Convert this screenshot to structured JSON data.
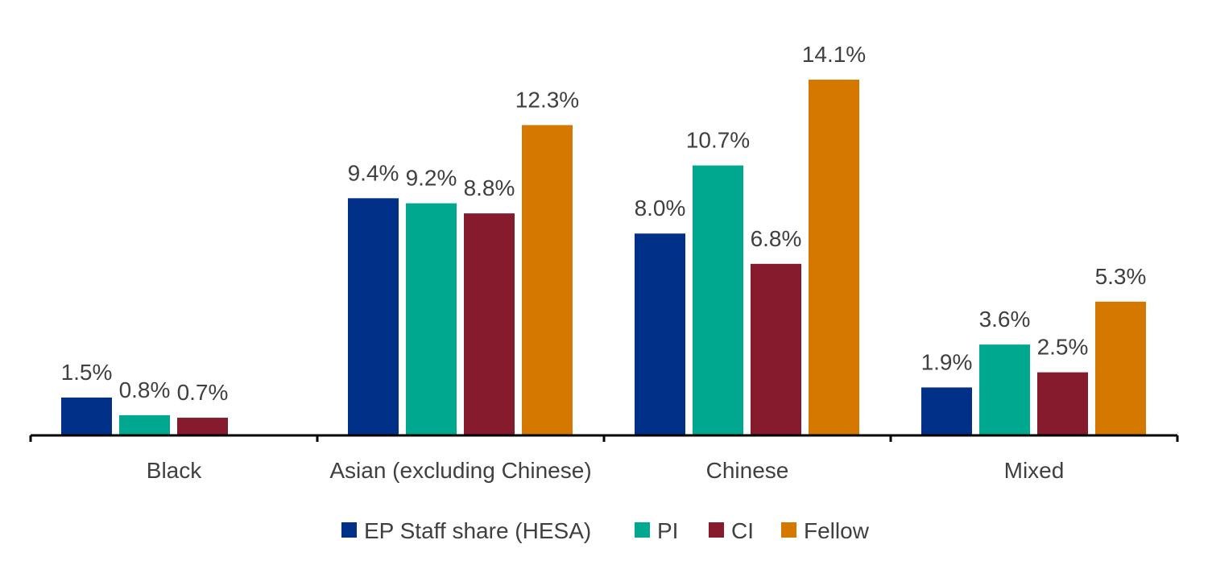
{
  "chart_data": {
    "type": "bar",
    "title": "",
    "xlabel": "",
    "ylabel": "",
    "ylim": [
      0,
      15
    ],
    "grid": false,
    "legend_position": "bottom",
    "categories": [
      "Black",
      "Asian (excluding Chinese)",
      "Chinese",
      "Mixed"
    ],
    "series": [
      {
        "name": "EP Staff share (HESA)",
        "color": "#003087",
        "values": [
          1.5,
          9.4,
          8.0,
          1.9
        ],
        "labels": [
          "1.5%",
          "9.4%",
          "8.0%",
          "1.9%"
        ]
      },
      {
        "name": "PI",
        "color": "#00A88F",
        "values": [
          0.8,
          9.2,
          10.7,
          3.6
        ],
        "labels": [
          "0.8%",
          "9.2%",
          "10.7%",
          "3.6%"
        ]
      },
      {
        "name": "CI",
        "color": "#861B2D",
        "values": [
          0.7,
          8.8,
          6.8,
          2.5
        ],
        "labels": [
          "0.7%",
          "8.8%",
          "6.8%",
          "2.5%"
        ]
      },
      {
        "name": "Fellow",
        "color": "#D57800",
        "values": [
          null,
          12.3,
          14.1,
          5.3
        ],
        "labels": [
          null,
          "12.3%",
          "14.1%",
          "5.3%"
        ]
      }
    ]
  }
}
